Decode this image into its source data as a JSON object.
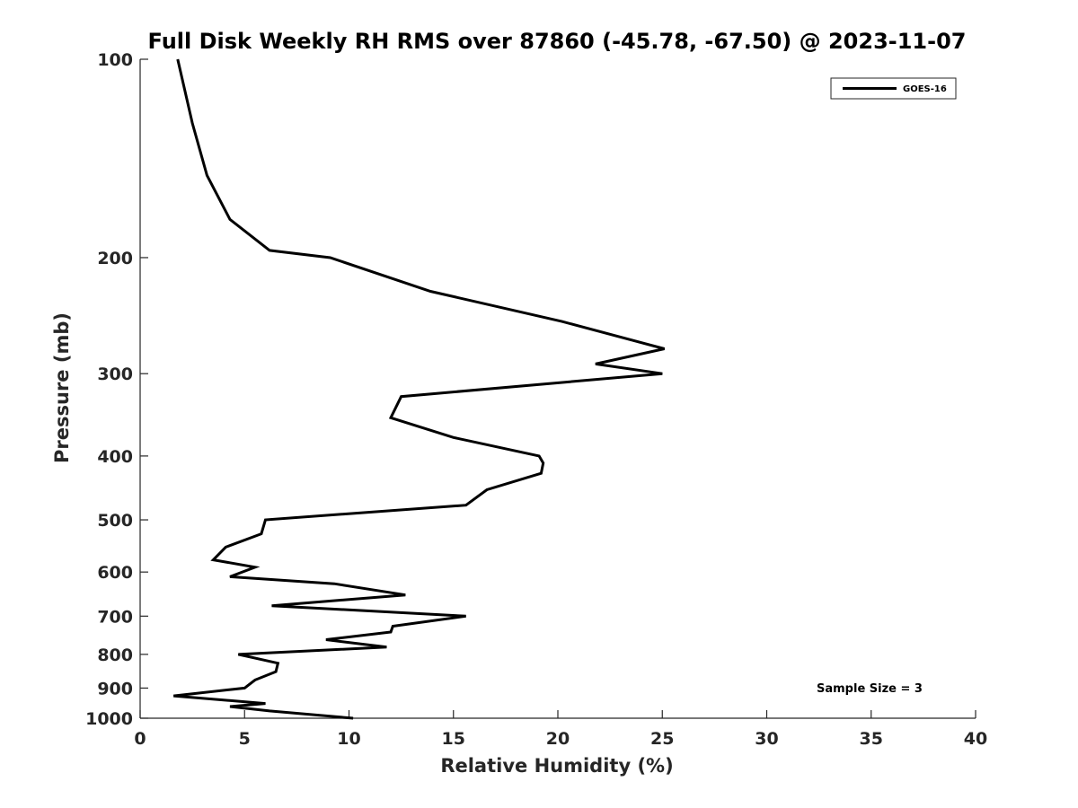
{
  "chart_data": {
    "type": "line",
    "title": "Full Disk Weekly RH RMS over 87860 (-45.78, -67.50) @ 2023-11-07",
    "xlabel": "Relative Humidity (%)",
    "ylabel": "Pressure (mb)",
    "xlim": [
      0,
      40
    ],
    "ylim": [
      100,
      1000
    ],
    "y_scale": "log",
    "y_reversed": true,
    "x_ticks": [
      "0",
      "5",
      "10",
      "15",
      "20",
      "25",
      "30",
      "35",
      "40"
    ],
    "y_ticks": [
      "100",
      "200",
      "300",
      "400",
      "500",
      "600",
      "700",
      "800",
      "900",
      "1000"
    ],
    "grid": false,
    "legend": "top-right",
    "annotation": "Sample Size = 3",
    "series": [
      {
        "name": "GOES-16",
        "color": "#000000",
        "x": [
          1.8,
          2.5,
          3.2,
          4.3,
          6.2,
          9.1,
          13.9,
          20.2,
          25.1,
          21.8,
          25.0,
          12.5,
          12.0,
          15.0,
          19.1,
          19.3,
          19.2,
          16.6,
          15.6,
          6.0,
          5.8,
          4.1,
          3.5,
          5.5,
          4.3,
          9.3,
          12.7,
          6.3,
          15.6,
          12.1,
          12.0,
          8.9,
          11.8,
          4.7,
          6.6,
          6.5,
          5.5,
          5.0,
          1.6,
          6.0,
          4.3,
          6.2,
          10.2
        ],
        "y": [
          100,
          125,
          150,
          175,
          195,
          200,
          225,
          250,
          275,
          290,
          300,
          325,
          350,
          375,
          400,
          410,
          425,
          450,
          475,
          500,
          525,
          550,
          575,
          590,
          610,
          625,
          650,
          675,
          700,
          725,
          740,
          760,
          780,
          800,
          825,
          850,
          875,
          900,
          925,
          950,
          960,
          975,
          1000
        ]
      }
    ]
  }
}
